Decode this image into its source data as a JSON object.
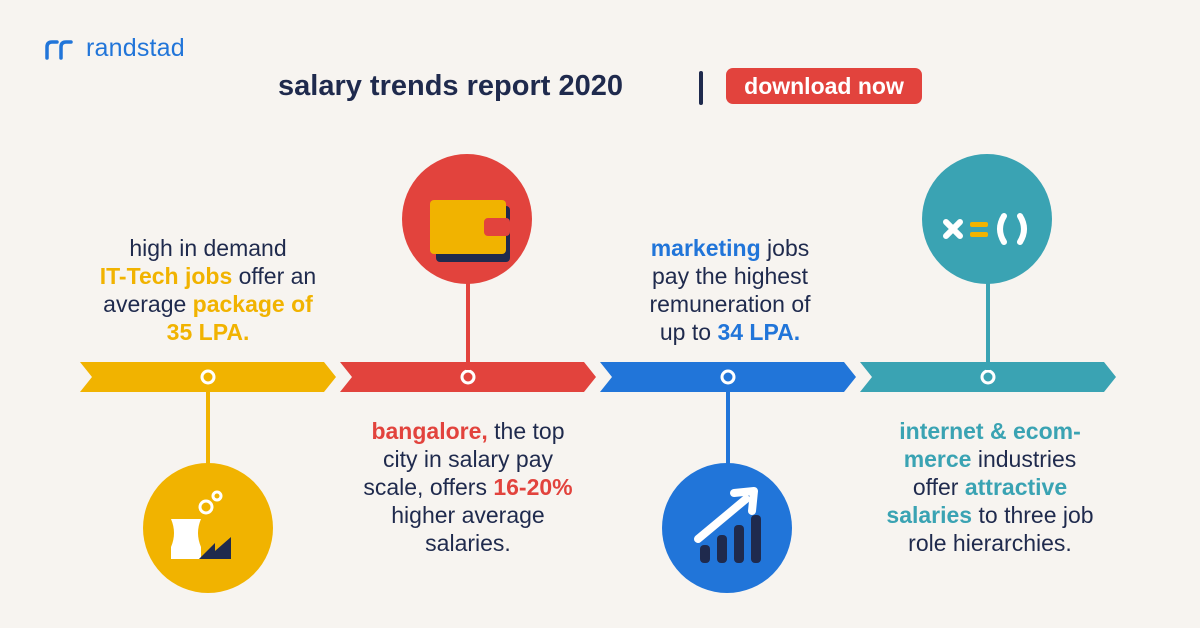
{
  "brand": {
    "name": "randstad",
    "icon": "randstad-logo-icon",
    "color": "#2175d9"
  },
  "header": {
    "title": "salary trends report 2020",
    "cta_label": "download now"
  },
  "colors": {
    "background": "#f7f4f0",
    "navy": "#1f2a4d",
    "yellow": "#f1b300",
    "red": "#e2433d",
    "blue": "#2175d9",
    "teal": "#3aa3b3"
  },
  "timeline": [
    {
      "icon": "factory-icon",
      "color": "#f1b300",
      "lines": [
        [
          {
            "t": "high in demand"
          }
        ],
        [
          {
            "t": "IT-Tech jobs",
            "h": 1
          },
          {
            "t": " offer an"
          }
        ],
        [
          {
            "t": "average "
          },
          {
            "t": "package of",
            "h": 1
          }
        ],
        [
          {
            "t": "35 LPA.",
            "h": 1
          }
        ]
      ]
    },
    {
      "icon": "wallet-icon",
      "color": "#e2433d",
      "lines": [
        [
          {
            "t": "bangalore,",
            "h": 1
          },
          {
            "t": " the top"
          }
        ],
        [
          {
            "t": "city in salary pay"
          }
        ],
        [
          {
            "t": "scale, offers "
          },
          {
            "t": "16-20%",
            "h": 1
          }
        ],
        [
          {
            "t": "higher average"
          }
        ],
        [
          {
            "t": "salaries."
          }
        ]
      ]
    },
    {
      "icon": "growth-chart-icon",
      "color": "#2175d9",
      "lines": [
        [
          {
            "t": "marketing",
            "h": 1
          },
          {
            "t": " jobs"
          }
        ],
        [
          {
            "t": "pay the highest"
          }
        ],
        [
          {
            "t": "remuneration of"
          }
        ],
        [
          {
            "t": "up to "
          },
          {
            "t": "34 LPA.",
            "h": 1
          }
        ]
      ]
    },
    {
      "icon": "formula-icon",
      "color": "#3aa3b3",
      "lines": [
        [
          {
            "t": "internet & ecom-",
            "h": 1
          }
        ],
        [
          {
            "t": "merce",
            "h": 1
          },
          {
            "t": " industries"
          }
        ],
        [
          {
            "t": "offer "
          },
          {
            "t": "attractive",
            "h": 1
          }
        ],
        [
          {
            "t": "salaries",
            "h": 1
          },
          {
            "t": " to three job"
          }
        ],
        [
          {
            "t": "role hierarchies."
          }
        ]
      ]
    }
  ]
}
